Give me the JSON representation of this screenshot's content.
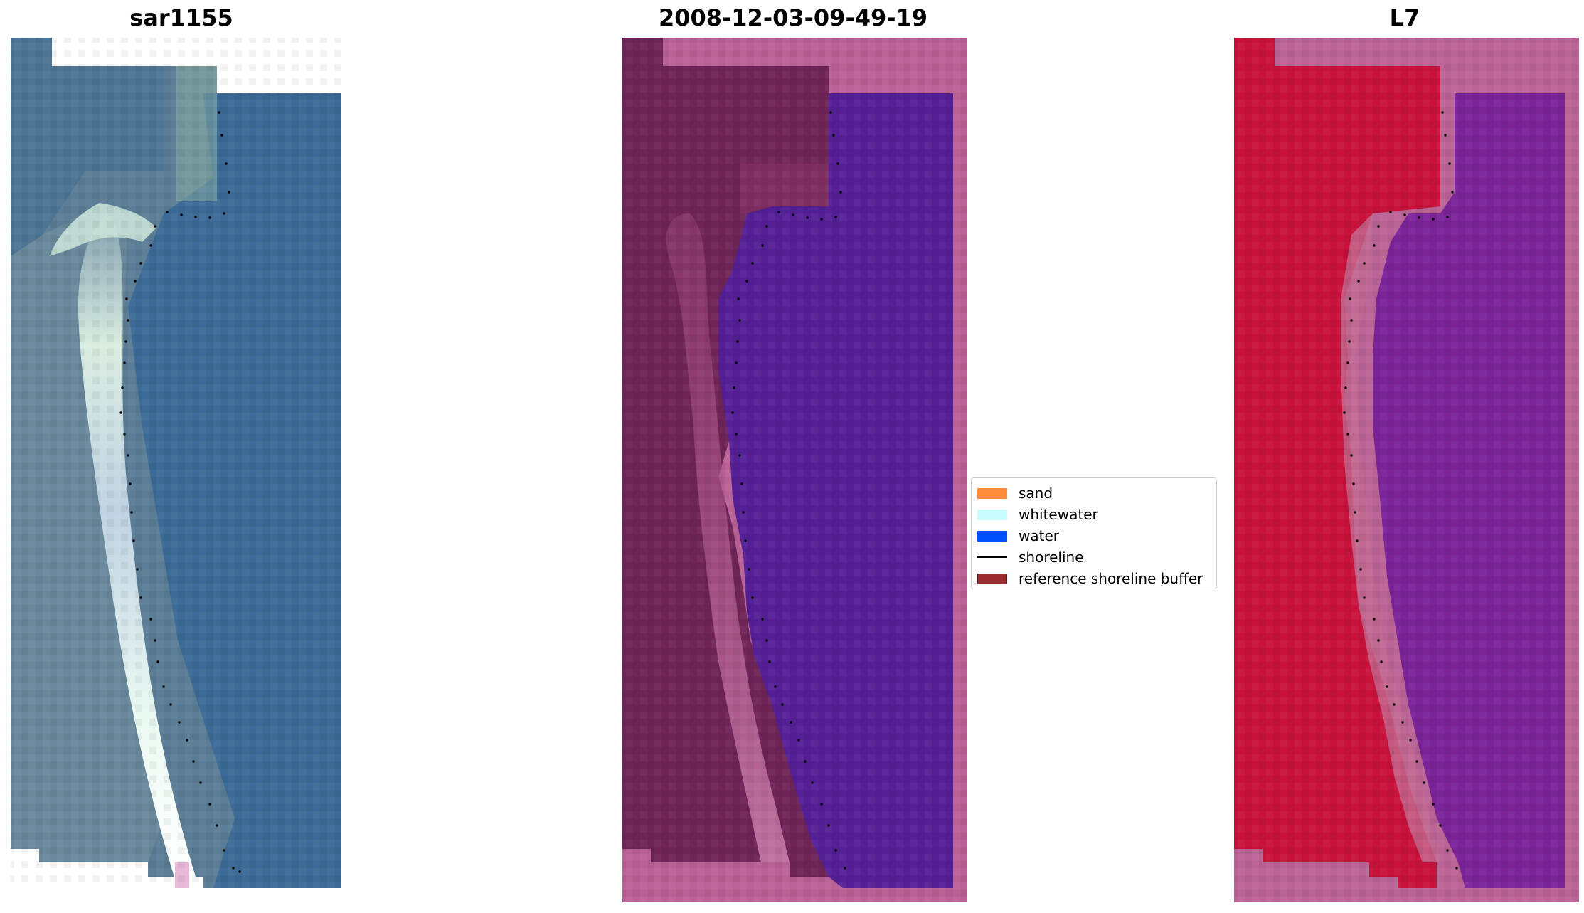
{
  "titles": {
    "left": "sar1155",
    "middle": "2008-12-03-09-49-19",
    "right": "L7"
  },
  "legend": {
    "sand": "sand",
    "whitewater": "whitewater",
    "water": "water",
    "shoreline": "shoreline",
    "buffer": "reference shoreline buffer"
  },
  "colors": {
    "sand": "#ff8c3a",
    "whitewater": "#c8fcfc",
    "water": "#0050ff",
    "shoreline": "#000000",
    "buffer": "#9b2d30",
    "rgb_water": "#3b6a94",
    "rgb_land": "#5a7c93",
    "rgb_whitewater": "#dcf5ee",
    "class_land": "#6f2458",
    "class_mask": "#b96296",
    "class_water": "#542096",
    "ndwi_land": "#c8123c",
    "ndwi_water": "#7a2498",
    "ndwi_mask": "#bb6496"
  }
}
